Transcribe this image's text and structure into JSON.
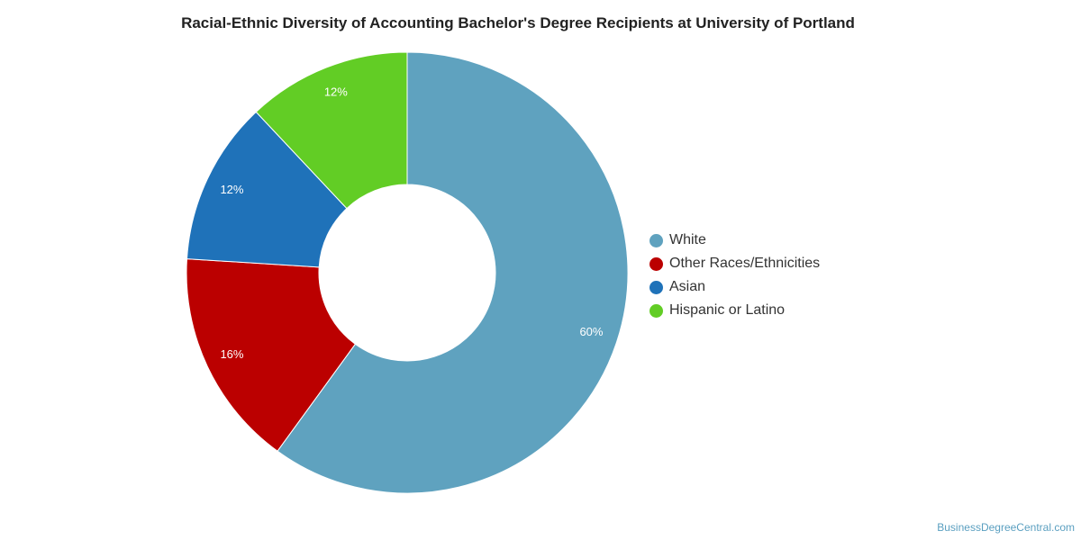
{
  "chart_data": {
    "type": "pie",
    "subtype": "donut",
    "title": "Racial-Ethnic Diversity of Accounting Bachelor's Degree Recipients at University of Portland",
    "slices": [
      {
        "name": "White",
        "value": 60,
        "label": "60%",
        "color": "#5fa2bf"
      },
      {
        "name": "Other Races/Ethnicities",
        "value": 16,
        "label": "16%",
        "color": "#bb0000"
      },
      {
        "name": "Asian",
        "value": 12,
        "label": "12%",
        "color": "#1f72b9"
      },
      {
        "name": "Hispanic or Latino",
        "value": 12,
        "label": "12%",
        "color": "#62cd25"
      }
    ],
    "legend_position": "right"
  },
  "source_text": "BusinessDegreeCentral.com"
}
